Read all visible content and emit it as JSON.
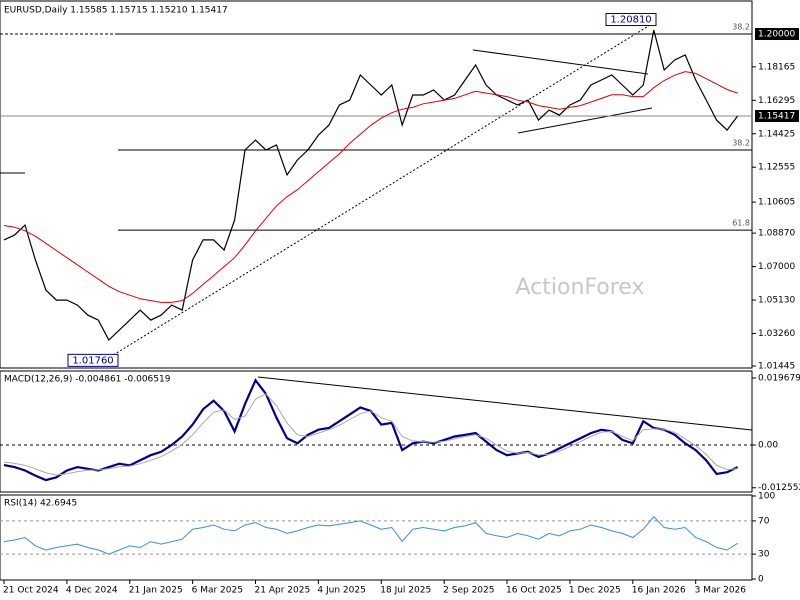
{
  "chart_data": [
    {
      "type": "line",
      "title": "EURUSD,Daily  1.15585 1.15715 1.15210 1.15417",
      "series": [
        {
          "color": "#000000",
          "width": 1.2,
          "values": [
            1.0849,
            1.0876,
            1.0932,
            1.0737,
            1.0569,
            1.0513,
            1.0513,
            1.0485,
            1.0429,
            1.0401,
            1.029,
            1.0345,
            1.0401,
            1.0457,
            1.0401,
            1.0429,
            1.0485,
            1.0457,
            1.0737,
            1.0849,
            1.0849,
            1.0793,
            1.096,
            1.1352,
            1.1407,
            1.1352,
            1.138,
            1.1212,
            1.1296,
            1.1352,
            1.1435,
            1.1491,
            1.1603,
            1.1631,
            1.1771,
            1.1715,
            1.1659,
            1.1715,
            1.1491,
            1.1659,
            1.1659,
            1.1687,
            1.1631,
            1.1659,
            1.1743,
            1.1827,
            1.1715,
            1.1659,
            1.1631,
            1.1603,
            1.1631,
            1.1519,
            1.1575,
            1.1547,
            1.1603,
            1.1631,
            1.1715,
            1.1743,
            1.1771,
            1.1715,
            1.1659,
            1.1715,
            1.2022,
            1.1799,
            1.1855,
            1.1883,
            1.1743,
            1.1631,
            1.1519,
            1.1463,
            1.15417
          ]
        },
        {
          "color": "#e00000",
          "width": 1,
          "values": [
            1.093,
            1.092,
            1.09,
            1.087,
            1.083,
            1.079,
            1.075,
            1.071,
            1.067,
            1.063,
            1.059,
            1.056,
            1.054,
            1.052,
            1.051,
            1.05,
            1.05,
            1.051,
            1.055,
            1.06,
            1.065,
            1.07,
            1.075,
            1.082,
            1.09,
            1.097,
            1.104,
            1.109,
            1.113,
            1.118,
            1.123,
            1.128,
            1.133,
            1.139,
            1.144,
            1.149,
            1.153,
            1.156,
            1.158,
            1.159,
            1.161,
            1.162,
            1.163,
            1.164,
            1.166,
            1.168,
            1.167,
            1.166,
            1.165,
            1.163,
            1.162,
            1.16,
            1.159,
            1.158,
            1.159,
            1.16,
            1.162,
            1.164,
            1.166,
            1.166,
            1.165,
            1.165,
            1.17,
            1.174,
            1.177,
            1.179,
            1.178,
            1.175,
            1.172,
            1.169,
            1.167
          ]
        }
      ],
      "ylim": [
        1.01333,
        1.21845
      ],
      "yticks": [
        1.18165,
        1.16295,
        1.14425,
        1.12555,
        1.10605,
        {
          "value": 1.0887,
          "label": "1.08870"
        },
        {
          "value": 1.07,
          "label": "1.07000"
        },
        {
          "value": 1.0513,
          "label": "1.05130"
        },
        {
          "value": 1.0326,
          "label": "1.03260"
        },
        1.01445
      ],
      "levels": [
        {
          "value": 1.2,
          "label": "1.20000"
        }
      ],
      "current_price": 1.15417,
      "fib_levels": [
        {
          "level": 38.2,
          "price": 1.2
        },
        {
          "level": 38.2,
          "price": 1.1352
        },
        {
          "level": 61.8,
          "price": 1.0904
        }
      ],
      "extremes": [
        {
          "value": 1.2081,
          "label": "1.20810"
        },
        {
          "value": 1.0176,
          "label": "1.01760"
        }
      ],
      "watermark": "ActionForex"
    },
    {
      "type": "line",
      "title": "MACD(12,26,9) -0.004861 -0.006519",
      "series": [
        {
          "color": "#00008b",
          "width": 2.2,
          "values": [
            -0.0059,
            -0.0065,
            -0.0075,
            -0.009,
            -0.0103,
            -0.0095,
            -0.0075,
            -0.0065,
            -0.007,
            -0.0075,
            -0.0065,
            -0.0055,
            -0.006,
            -0.0045,
            -0.003,
            -0.002,
            0,
            0.0025,
            0.006,
            0.0105,
            0.013,
            0.01,
            0.004,
            0.012,
            0.019,
            0.015,
            0.008,
            0.002,
            0.0005,
            0.003,
            0.0045,
            0.005,
            0.007,
            0.009,
            0.011,
            0.01,
            0.006,
            0.0065,
            -0.0015,
            0.0005,
            0.001,
            0.0005,
            0.0015,
            0.0025,
            0.003,
            0.0035,
            0.001,
            -0.0015,
            -0.003,
            -0.0025,
            -0.002,
            -0.0035,
            -0.0025,
            -0.001,
            0.0005,
            0.002,
            0.0035,
            0.0045,
            0.004,
            0.0015,
            0.0005,
            0.007,
            0.005,
            0.0045,
            0.003,
            0.0005,
            -0.0015,
            -0.0045,
            -0.0085,
            -0.008,
            -0.0065
          ]
        },
        {
          "color": "#a9a9a9",
          "width": 1,
          "values": [
            -0.005,
            -0.0054,
            -0.006,
            -0.007,
            -0.0082,
            -0.0088,
            -0.0085,
            -0.0078,
            -0.0074,
            -0.0073,
            -0.007,
            -0.0064,
            -0.0062,
            -0.0055,
            -0.0045,
            -0.0034,
            -0.0018,
            0.0002,
            0.003,
            0.0065,
            0.0096,
            0.0103,
            0.0075,
            0.0085,
            0.0135,
            0.015,
            0.0115,
            0.0065,
            0.003,
            0.0025,
            0.0035,
            0.0045,
            0.0058,
            0.0075,
            0.0092,
            0.01,
            0.008,
            0.007,
            0.0025,
            0.0012,
            0.001,
            0.0008,
            0.0011,
            0.0018,
            0.0025,
            0.003,
            0.002,
            0,
            -0.0018,
            -0.0024,
            -0.0022,
            -0.0029,
            -0.0027,
            -0.0018,
            -0.0005,
            0.001,
            0.0025,
            0.0038,
            0.004,
            0.0025,
            0.0013,
            0.0045,
            0.0048,
            0.0046,
            0.0037,
            0.0018,
            -0.0002,
            -0.0028,
            -0.006,
            -0.0072,
            -0.007
          ]
        }
      ],
      "ylim": [
        -0.013804,
        0.021734
      ],
      "yticks": [
        0.019679,
        {
          "value": 0,
          "label": "0.00"
        },
        -0.012552
      ]
    },
    {
      "type": "line",
      "title": "RSI(14) 42.6945",
      "categories": [
        "21 Oct 2024",
        null,
        null,
        null,
        null,
        null,
        "4 Dec 2024",
        null,
        null,
        null,
        null,
        null,
        "21 Jan 2025",
        null,
        null,
        null,
        null,
        null,
        "6 Mar 2025",
        null,
        null,
        null,
        null,
        null,
        "21 Apr 2025",
        null,
        null,
        null,
        null,
        null,
        "4 Jun 2025",
        null,
        null,
        null,
        null,
        null,
        "18 Jul 2025",
        null,
        null,
        null,
        null,
        null,
        "2 Sep 2025",
        null,
        null,
        null,
        null,
        null,
        "16 Oct 2025",
        null,
        null,
        null,
        null,
        null,
        "1 Dec 2025",
        null,
        null,
        null,
        null,
        null,
        "16 Jan 2026",
        null,
        null,
        null,
        null,
        null,
        "3 Mar 2026",
        null,
        null,
        null,
        null
      ],
      "series": [
        {
          "color": "#3a8ee0",
          "width": 1,
          "values": [
            45,
            47,
            50,
            40,
            35,
            38,
            40,
            42,
            38,
            35,
            30,
            35,
            40,
            38,
            45,
            42,
            45,
            48,
            60,
            62,
            65,
            60,
            58,
            65,
            68,
            62,
            60,
            55,
            58,
            62,
            65,
            64,
            66,
            68,
            70,
            65,
            60,
            62,
            45,
            60,
            62,
            60,
            58,
            62,
            64,
            68,
            55,
            52,
            50,
            55,
            52,
            48,
            55,
            52,
            58,
            60,
            65,
            62,
            58,
            55,
            50,
            60,
            75,
            62,
            60,
            62,
            50,
            45,
            38,
            35,
            43
          ]
        }
      ],
      "ylim": [
        0,
        100
      ],
      "yticks": [
        100,
        70,
        30,
        0
      ],
      "levels": [
        70,
        30
      ]
    }
  ]
}
